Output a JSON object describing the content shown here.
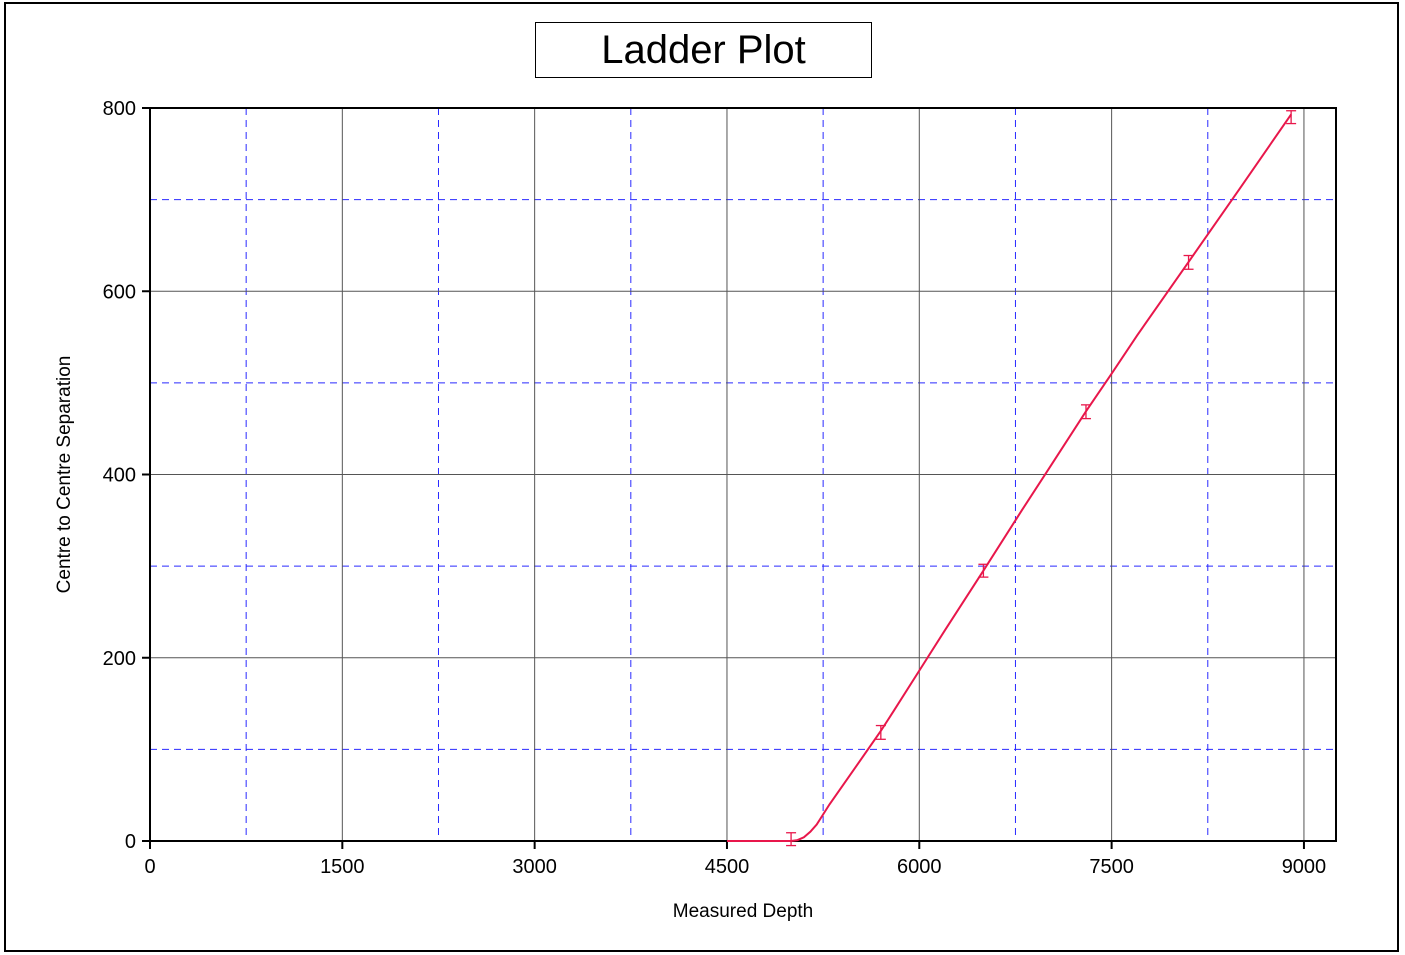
{
  "chart_data": {
    "type": "line",
    "title": "Ladder Plot",
    "xlabel": "Measured Depth",
    "ylabel": "Centre to Centre Separation",
    "xlim": [
      0,
      9250
    ],
    "ylim": [
      0,
      800
    ],
    "x_ticks": [
      0,
      1500,
      3000,
      4500,
      6000,
      7500,
      9000
    ],
    "y_ticks": [
      0,
      200,
      400,
      600,
      800
    ],
    "x_major_grid": [
      1500,
      3000,
      4500,
      6000,
      7500,
      9000
    ],
    "x_minor_grid": [
      750,
      2250,
      3750,
      5250,
      6750,
      8250
    ],
    "y_major_grid": [
      200,
      400,
      600,
      800
    ],
    "y_minor_grid": [
      100,
      300,
      500,
      700
    ],
    "grid": true,
    "series": [
      {
        "color": "#e8174b",
        "x": [
          4500,
          4900,
          5000,
          5050,
          5100,
          5150,
          5200,
          5300,
          5500,
          5700,
          5800,
          6000,
          6200,
          6500,
          6800,
          7000,
          7300,
          7500,
          7700,
          8100,
          8500,
          8900
        ],
        "y": [
          0,
          0,
          0,
          1,
          4,
          10,
          18,
          40,
          80,
          120,
          142,
          186,
          230,
          295,
          361,
          404,
          469,
          510,
          552,
          632,
          712,
          793
        ]
      }
    ],
    "error_markers": {
      "color": "#e8174b",
      "points": [
        {
          "x": 5000,
          "y": 2,
          "low": -5,
          "high": 9
        },
        {
          "x": 5700,
          "y": 118,
          "low": 111,
          "high": 126
        },
        {
          "x": 6500,
          "y": 295,
          "low": 288,
          "high": 302
        },
        {
          "x": 7300,
          "y": 468,
          "low": 461,
          "high": 476
        },
        {
          "x": 8100,
          "y": 631,
          "low": 624,
          "high": 639
        },
        {
          "x": 8900,
          "y": 790,
          "low": 783,
          "high": 797
        }
      ]
    }
  }
}
